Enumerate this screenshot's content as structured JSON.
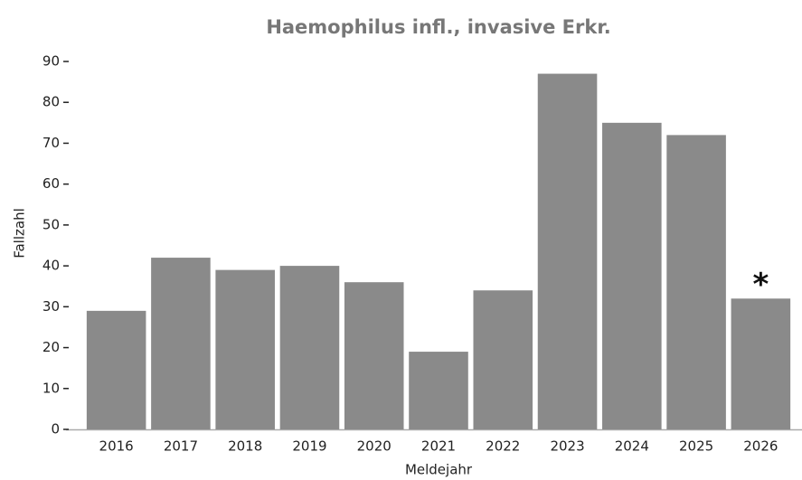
{
  "chart_data": {
    "type": "bar",
    "title": "Haemophilus infl., invasive Erkr.",
    "x_label": "Meldejahr",
    "y_label": "Fallzahl",
    "categories": [
      "2016",
      "2017",
      "2018",
      "2019",
      "2020",
      "2021",
      "2022",
      "2023",
      "2024",
      "2025",
      "2026"
    ],
    "values": [
      29,
      42,
      39,
      40,
      36,
      19,
      34,
      87,
      75,
      72,
      32
    ],
    "color": "#8a8a8a",
    "ylim": [
      0,
      90
    ],
    "yticks": [
      0,
      10,
      20,
      30,
      40,
      50,
      60,
      70,
      80,
      90
    ],
    "annotation": "*",
    "grid": false
  }
}
